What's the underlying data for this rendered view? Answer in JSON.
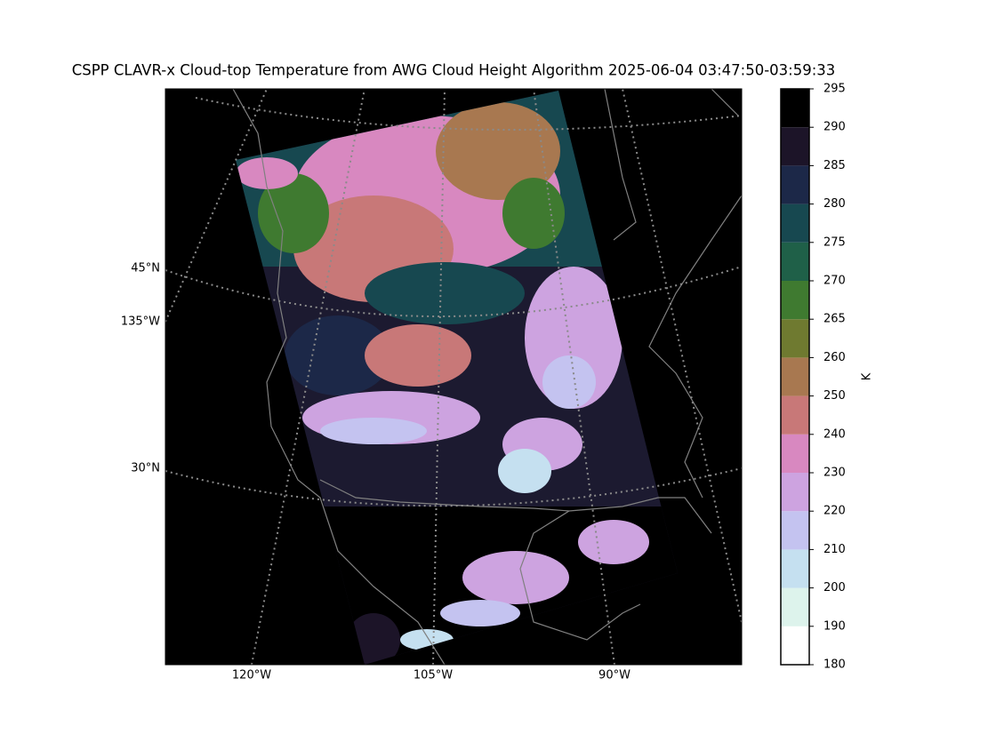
{
  "title": "CSPP CLAVR-x Cloud-top Temperature from AWG Cloud Height Algorithm 2025-06-04 03:47:50-03:59:33",
  "map": {
    "left_labels": [
      "45°N",
      "135°W",
      "30°N"
    ],
    "bottom_labels": [
      "120°W",
      "105°W",
      "90°W"
    ]
  },
  "colorbar": {
    "label": "K",
    "boundaries": [
      180,
      190,
      200,
      210,
      220,
      230,
      240,
      250,
      260,
      265,
      270,
      275,
      280,
      285,
      290,
      295
    ],
    "colors": [
      "#ffffff",
      "#ddf3ec",
      "#c5e0f0",
      "#c4c3f0",
      "#cda3e0",
      "#d888c0",
      "#c87878",
      "#a87850",
      "#6f7a30",
      "#3f7a30",
      "#1f6048",
      "#174850",
      "#1c2848",
      "#1c1428",
      "#000000"
    ]
  }
}
